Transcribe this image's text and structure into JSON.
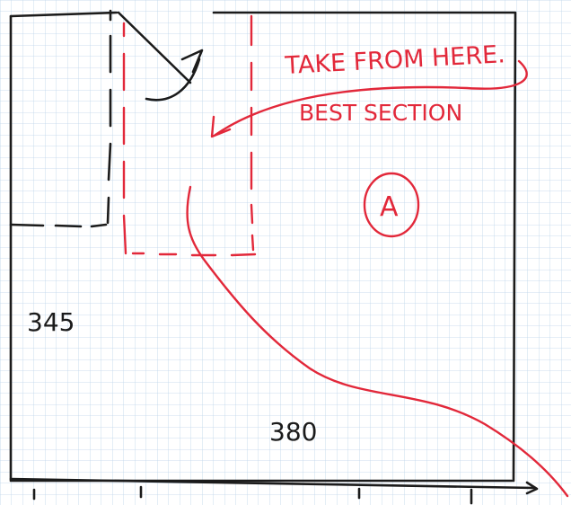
{
  "sketch": {
    "note_line_1": "TAKE FROM HERE.",
    "note_line_2": "BEST SECTION",
    "region_label": "A",
    "dimension_height": "345",
    "dimension_width": "380"
  },
  "colors": {
    "paper": "#ffffff",
    "grid": "#bcd3ea",
    "ink": "#1b1b1b",
    "red_ink": "#e2283a"
  }
}
